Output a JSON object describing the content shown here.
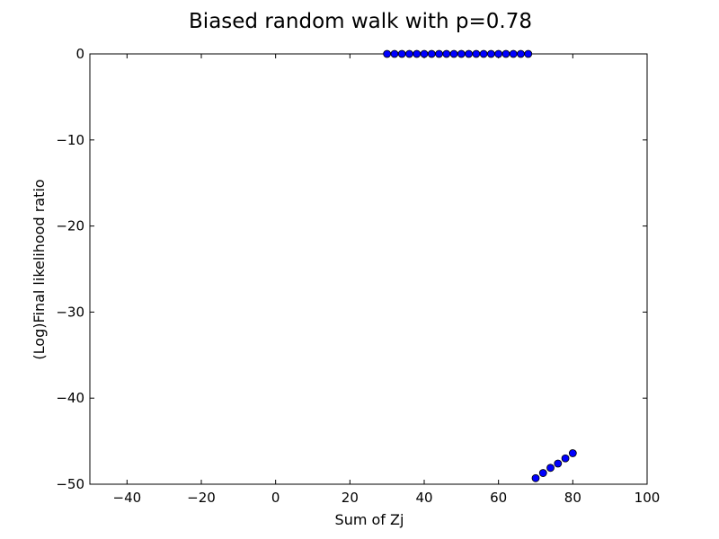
{
  "chart_data": {
    "type": "scatter",
    "title": "Biased random walk with p=0.78",
    "xlabel": "Sum of Zj",
    "ylabel": "(Log)Final likelihood ratio",
    "xlim": [
      -50,
      100
    ],
    "ylim": [
      -50,
      0
    ],
    "xticks": [
      -40,
      -20,
      0,
      20,
      40,
      60,
      80,
      100
    ],
    "yticks": [
      0,
      -10,
      -20,
      -30,
      -40,
      -50
    ],
    "xtick_labels": [
      "−40",
      "−20",
      "0",
      "20",
      "40",
      "60",
      "80",
      "100"
    ],
    "ytick_labels": [
      "0",
      "−10",
      "−20",
      "−30",
      "−40",
      "−50"
    ],
    "grid": false,
    "marker_color": "#0000ff",
    "series": [
      {
        "x": [
          30,
          32,
          34,
          36,
          38,
          40,
          42,
          44,
          46,
          48,
          50,
          52,
          54,
          56,
          58,
          60,
          62,
          64,
          66,
          68,
          70,
          72,
          74,
          76,
          78,
          80
        ],
        "y": [
          0,
          0,
          0,
          0,
          0,
          0,
          0,
          0,
          0,
          0,
          0,
          0,
          0,
          0,
          0,
          0,
          0,
          0,
          0,
          0,
          -49.3,
          -48.7,
          -48.1,
          -47.6,
          -47.0,
          -46.4
        ]
      }
    ]
  }
}
